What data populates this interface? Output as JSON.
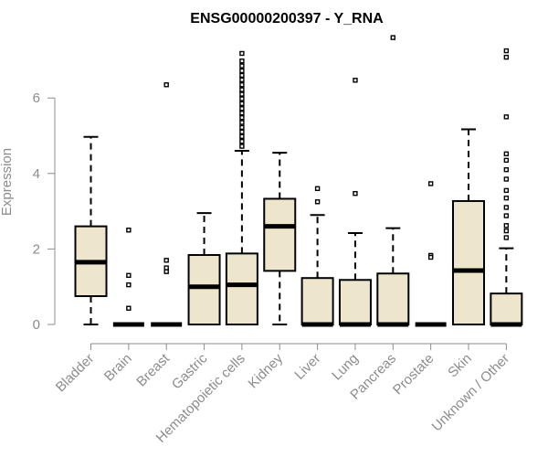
{
  "chart_data": {
    "type": "boxplot",
    "title": "ENSG00000200397 - Y_RNA",
    "ylabel": "Expression",
    "xlabel": "",
    "ylim": [
      0,
      7.6
    ],
    "yticks": [
      "0",
      "2",
      "4",
      "6"
    ],
    "box_color": "#ede6cc",
    "categories": [
      "Bladder",
      "Brain",
      "Breast",
      "Gastric",
      "Hematopoietic cells",
      "Kidney",
      "Liver",
      "Lung",
      "Pancreas",
      "Prostate",
      "Skin",
      "Unknown / Other"
    ],
    "boxes": [
      {
        "min": 0.0,
        "q1": 0.75,
        "median": 1.65,
        "q3": 2.6,
        "max": 4.97,
        "outliers": []
      },
      {
        "min": 0.0,
        "q1": 0.0,
        "median": 0.0,
        "q3": 0.0,
        "max": 0.0,
        "outliers": [
          2.5,
          1.3,
          1.05,
          0.43
        ]
      },
      {
        "min": 0.0,
        "q1": 0.0,
        "median": 0.0,
        "q3": 0.0,
        "max": 0.0,
        "outliers": [
          6.35,
          1.7,
          1.5,
          1.4
        ]
      },
      {
        "min": 0.0,
        "q1": 0.0,
        "median": 1.0,
        "q3": 1.84,
        "max": 2.95,
        "outliers": []
      },
      {
        "min": 0.0,
        "q1": 0.0,
        "median": 1.05,
        "q3": 1.88,
        "max": 4.6,
        "outliers": [
          4.72,
          4.85,
          4.98,
          5.1,
          5.22,
          5.35,
          5.48,
          5.6,
          5.72,
          5.85,
          5.98,
          6.1,
          6.22,
          6.35,
          6.48,
          6.6,
          6.72,
          6.85,
          6.98,
          7.18
        ]
      },
      {
        "min": 0.0,
        "q1": 1.42,
        "median": 2.6,
        "q3": 3.33,
        "max": 4.55,
        "outliers": []
      },
      {
        "min": 0.0,
        "q1": 0.0,
        "median": 0.0,
        "q3": 1.23,
        "max": 2.9,
        "outliers": [
          3.6,
          3.25
        ]
      },
      {
        "min": 0.0,
        "q1": 0.0,
        "median": 0.0,
        "q3": 1.18,
        "max": 2.42,
        "outliers": [
          6.47,
          3.47
        ]
      },
      {
        "min": 0.0,
        "q1": 0.0,
        "median": 0.0,
        "q3": 1.35,
        "max": 2.55,
        "outliers": [
          7.6
        ]
      },
      {
        "min": 0.0,
        "q1": 0.0,
        "median": 0.0,
        "q3": 0.0,
        "max": 0.0,
        "outliers": [
          3.73,
          1.83,
          1.78
        ]
      },
      {
        "min": 0.0,
        "q1": 0.0,
        "median": 1.43,
        "q3": 3.27,
        "max": 5.17,
        "outliers": []
      },
      {
        "min": 0.0,
        "q1": 0.0,
        "median": 0.0,
        "q3": 0.82,
        "max": 2.02,
        "outliers": [
          7.25,
          7.08,
          5.5,
          4.52,
          4.35,
          4.1,
          3.85,
          3.55,
          3.35,
          3.1,
          2.88,
          2.62,
          2.48,
          2.3
        ]
      }
    ]
  }
}
